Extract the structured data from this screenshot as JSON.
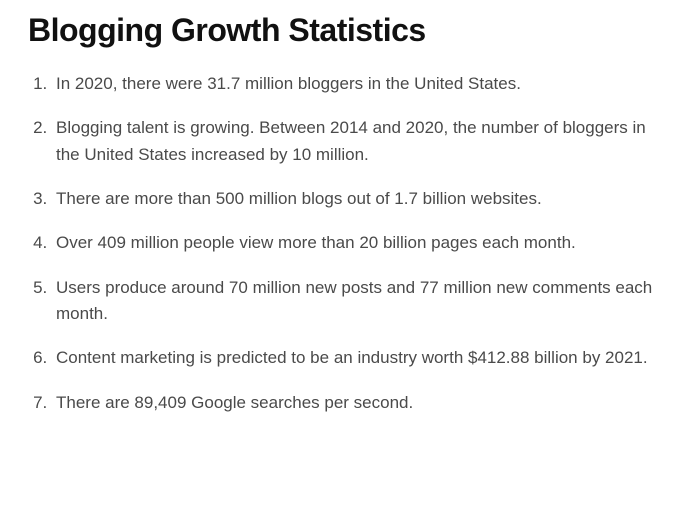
{
  "heading": "Blogging Growth Statistics",
  "items": [
    "In 2020, there were 31.7 million bloggers in the United States.",
    "Blogging talent is growing. Between 2014 and 2020, the number of bloggers in the United States increased by 10 million.",
    "There are more than 500 million blogs out of 1.7 billion websites.",
    "Over 409 million people view more than 20 billion pages each month.",
    "Users produce around 70 million new posts and 77 million new comments each month.",
    "Content marketing is predicted to be an industry worth $412.88 billion by 2021.",
    "There are 89,409 Google searches per second."
  ],
  "colors": {
    "heading": "#111111",
    "body_text": "#4a4a4a",
    "background": "#ffffff"
  },
  "typography": {
    "heading_fontsize": 32,
    "heading_weight": 800,
    "item_fontsize": 17,
    "item_lineheight": 1.55
  }
}
